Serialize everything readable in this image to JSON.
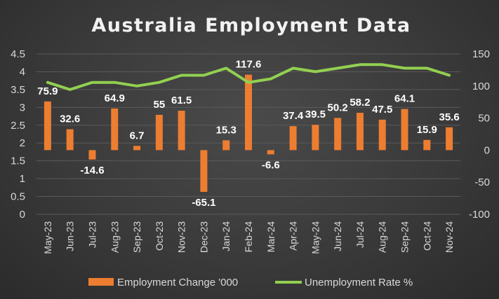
{
  "chart_data": {
    "type": "bar",
    "title": "Australia Employment Data",
    "categories": [
      "May-23",
      "Jun-23",
      "Jul-23",
      "Aug-23",
      "Sep-23",
      "Oct-23",
      "Nov-23",
      "Dec-23",
      "Jan-24",
      "Feb-24",
      "Mar-24",
      "Apr-24",
      "May-24",
      "Jun-24",
      "Jul-24",
      "Aug-24",
      "Sep-24",
      "Oct-24",
      "Nov-24"
    ],
    "series": [
      {
        "name": "Employment Change '000",
        "type": "bar",
        "axis": "right",
        "color": "#ed7d31",
        "values": [
          75.9,
          32.6,
          -14.6,
          64.9,
          6.7,
          55,
          61.5,
          -65.1,
          15.3,
          117.6,
          -6.6,
          37.4,
          39.5,
          50.2,
          58.2,
          47.5,
          64.1,
          15.9,
          35.6
        ],
        "labels": [
          "75.9",
          "32.6",
          "-14.6",
          "64.9",
          "6.7",
          "55",
          "61.5",
          "-65.1",
          "15.3",
          "117.6",
          "-6.6",
          "37.4",
          "39.5",
          "50.2",
          "58.2",
          "47.5",
          "64.1",
          "15.9",
          "35.6"
        ]
      },
      {
        "name": "Unemployment Rate %",
        "type": "line",
        "axis": "left",
        "color": "#92d050",
        "values": [
          3.7,
          3.5,
          3.7,
          3.7,
          3.6,
          3.7,
          3.9,
          3.9,
          4.1,
          3.7,
          3.8,
          4.1,
          4.0,
          4.1,
          4.2,
          4.2,
          4.1,
          4.1,
          3.9
        ]
      }
    ],
    "y_left": {
      "range": [
        0,
        4.5
      ],
      "ticks": [
        "0",
        "0.5",
        "1",
        "1.5",
        "2",
        "2.5",
        "3",
        "3.5",
        "4",
        "4.5"
      ]
    },
    "y_right": {
      "range": [
        -100,
        150
      ],
      "ticks": [
        "-100",
        "-50",
        "0",
        "50",
        "100",
        "150"
      ]
    },
    "grid": true,
    "legend_position": "bottom"
  }
}
